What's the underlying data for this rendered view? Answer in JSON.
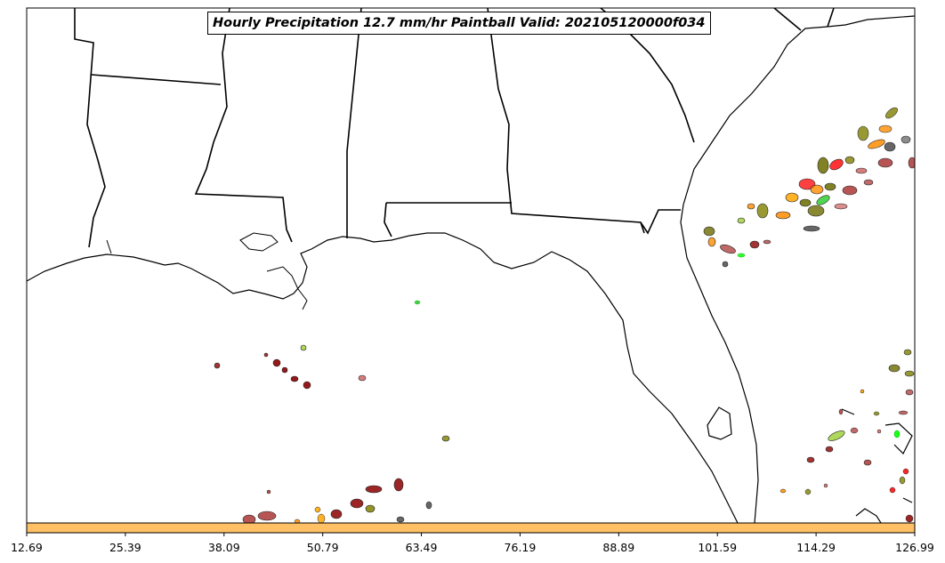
{
  "chart_data": {
    "type": "heatmap",
    "title": "Hourly Precipitation 12.7 mm/hr Paintball Valid: 202105120000f034",
    "colorbar": {
      "ticks": [
        "12.69",
        "25.39",
        "38.09",
        "50.79",
        "63.49",
        "76.19",
        "88.89",
        "101.59",
        "114.29",
        "126.99"
      ],
      "range": [
        12.69,
        126.99
      ],
      "color": "#FFC066"
    },
    "member_colors": [
      "#8B0000",
      "#A52A2A",
      "#CD5C5C",
      "#FF0000",
      "#FF8C00",
      "#FFA500",
      "#6B6B00",
      "#808000",
      "#9ACD32",
      "#32CD32",
      "#00FF00",
      "#404040"
    ]
  },
  "map": {
    "background": "#ffffff",
    "border_color": "#000000"
  }
}
